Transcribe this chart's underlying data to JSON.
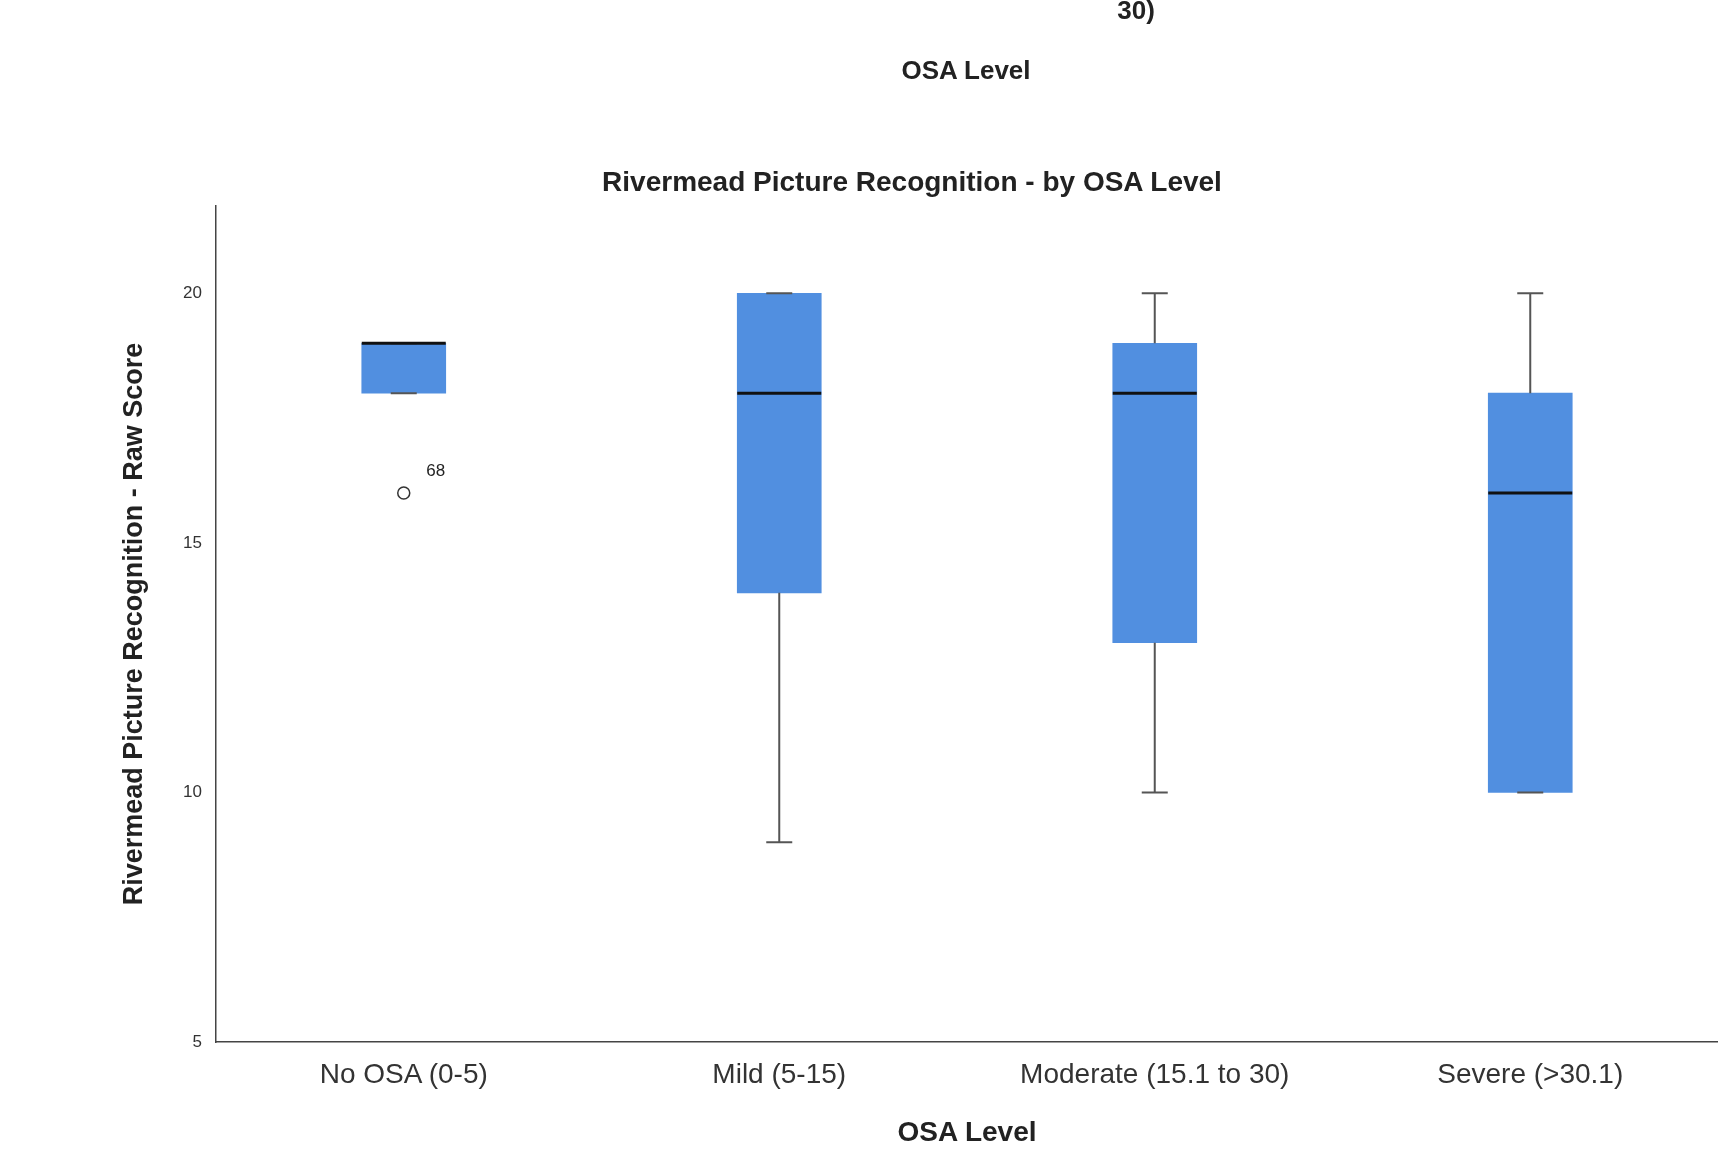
{
  "chart_data": {
    "type": "box",
    "title": "Rivermead Picture Recognition - by OSA Level",
    "xlabel": "OSA Level",
    "ylabel": "Rivermead Picture Recognition - Raw Score",
    "categories": [
      "No OSA (0-5)",
      "Mild (5-15)",
      "Moderate (15.1 to 30)",
      "Severe (>30.1)"
    ],
    "boxes": [
      {
        "low": 18,
        "q1": 18,
        "median": 19,
        "q3": 19,
        "high": 19,
        "outliers": [
          16
        ]
      },
      {
        "low": 9,
        "q1": 14,
        "median": 18,
        "q3": 20,
        "high": 20
      },
      {
        "low": 10,
        "q1": 13,
        "median": 18,
        "q3": 19,
        "high": 20
      },
      {
        "low": 10,
        "q1": 10,
        "median": 16,
        "q3": 18,
        "high": 20
      }
    ],
    "color": "#518fe0",
    "ylim": [
      5,
      21.75
    ],
    "yticks": [
      5,
      10,
      15,
      20
    ],
    "grid": false,
    "legend": false,
    "annotations": [
      "30)",
      "OSA Level",
      "68"
    ]
  }
}
